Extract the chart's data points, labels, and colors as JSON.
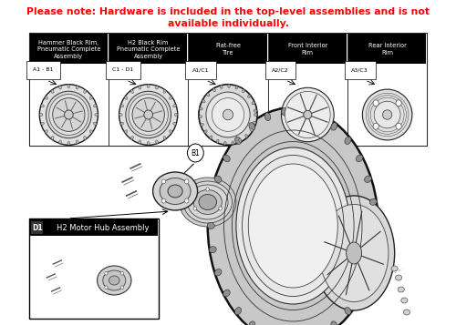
{
  "title_line1": "Please note: Hardware is included in the top-level assemblies and is not",
  "title_line2": "available individually.",
  "title_color": "#ff0000",
  "title_fontsize": 7.8,
  "bg_color": "#ffffff",
  "table": {
    "columns": [
      {
        "label": "Hammer Black Rim,\nPneumatic Complete\nAssembly",
        "code": "A1 - B1"
      },
      {
        "label": "H2 Black Rim\nPneumatic Complete\nAssembly",
        "code": "C1 - D1"
      },
      {
        "label": "Flat-free\nTire",
        "code": "A1/C1"
      },
      {
        "label": "Front Interior\nRim",
        "code": "A2/C2"
      },
      {
        "label": "Rear Interior\nRim",
        "code": "A3/C3"
      }
    ],
    "header_bg": "#000000",
    "header_fg": "#ffffff",
    "border_color": "#000000"
  },
  "callout_b1": "B1",
  "callout_d1": "D1",
  "label_d1": "H2 Motor Hub Assembly"
}
